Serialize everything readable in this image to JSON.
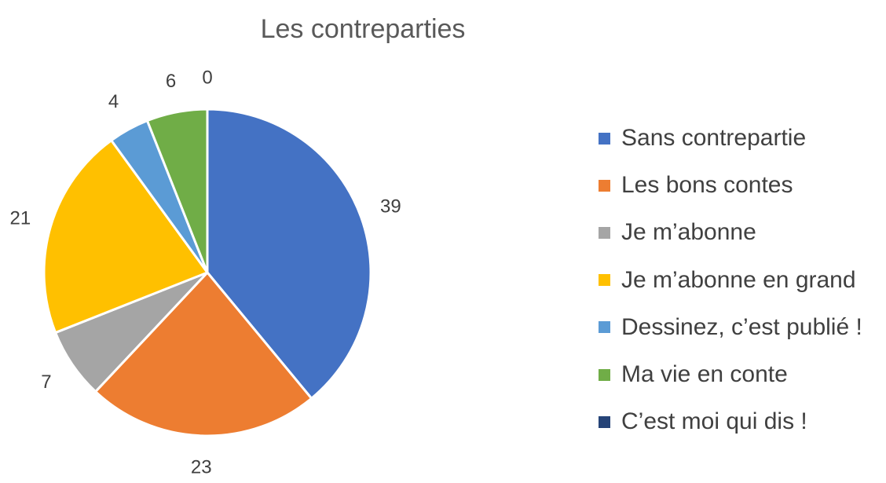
{
  "chart_data": {
    "type": "pie",
    "title": "Les contreparties",
    "series": [
      {
        "name": "Sans contrepartie",
        "value": 39,
        "color": "#4472C4"
      },
      {
        "name": "Les bons contes",
        "value": 23,
        "color": "#ED7D31"
      },
      {
        "name": "Je m’abonne",
        "value": 7,
        "color": "#A5A5A5"
      },
      {
        "name": "Je m’abonne en grand",
        "value": 21,
        "color": "#FFC000"
      },
      {
        "name": "Dessinez, c’est publié !",
        "value": 4,
        "color": "#5B9BD5"
      },
      {
        "name": "Ma vie en conte",
        "value": 6,
        "color": "#70AD47"
      },
      {
        "name": "C’est moi qui dis !",
        "value": 0,
        "color": "#264478"
      }
    ],
    "legend_position": "right",
    "data_labels": "outside"
  }
}
